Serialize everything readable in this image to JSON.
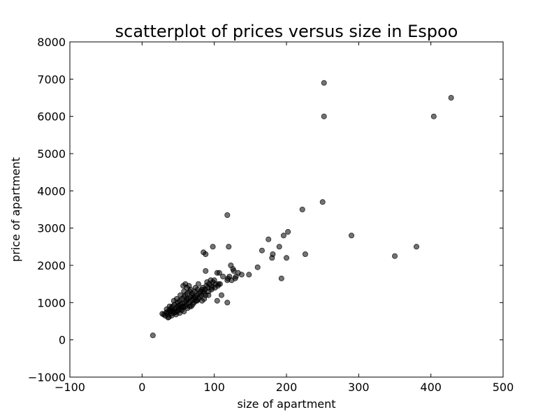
{
  "chart_data": {
    "type": "scatter",
    "title": "scatterplot of prices versus size in Espoo",
    "xlabel": "size of apartment",
    "ylabel": "price of apartment",
    "xlim": [
      -100,
      500
    ],
    "ylim": [
      -1000,
      8000
    ],
    "xticks": [
      -100,
      0,
      100,
      200,
      300,
      400,
      500
    ],
    "yticks": [
      -1000,
      0,
      1000,
      2000,
      3000,
      4000,
      5000,
      6000,
      7000,
      8000
    ],
    "xtick_labels": [
      "−100",
      "0",
      "100",
      "200",
      "300",
      "400",
      "500"
    ],
    "ytick_labels": [
      "−1000",
      "0",
      "1000",
      "2000",
      "3000",
      "4000",
      "5000",
      "6000",
      "7000",
      "8000"
    ],
    "grid": false,
    "marker_color": "#000000",
    "marker_opacity": 0.55,
    "points": [
      [
        15,
        120
      ],
      [
        28,
        700
      ],
      [
        30,
        680
      ],
      [
        32,
        650
      ],
      [
        33,
        720
      ],
      [
        35,
        750
      ],
      [
        36,
        690
      ],
      [
        37,
        610
      ],
      [
        38,
        800
      ],
      [
        39,
        760
      ],
      [
        40,
        850
      ],
      [
        40,
        700
      ],
      [
        41,
        650
      ],
      [
        42,
        900
      ],
      [
        43,
        780
      ],
      [
        44,
        720
      ],
      [
        45,
        950
      ],
      [
        45,
        820
      ],
      [
        46,
        760
      ],
      [
        47,
        680
      ],
      [
        48,
        880
      ],
      [
        49,
        1000
      ],
      [
        50,
        920
      ],
      [
        50,
        780
      ],
      [
        51,
        850
      ],
      [
        52,
        1050
      ],
      [
        52,
        720
      ],
      [
        53,
        950
      ],
      [
        54,
        880
      ],
      [
        55,
        1100
      ],
      [
        55,
        800
      ],
      [
        56,
        980
      ],
      [
        57,
        870
      ],
      [
        58,
        1150
      ],
      [
        58,
        760
      ],
      [
        59,
        1000
      ],
      [
        60,
        1200
      ],
      [
        60,
        900
      ],
      [
        61,
        1050
      ],
      [
        62,
        950
      ],
      [
        63,
        1250
      ],
      [
        63,
        850
      ],
      [
        64,
        1100
      ],
      [
        65,
        1000
      ],
      [
        66,
        1300
      ],
      [
        66,
        900
      ],
      [
        67,
        1150
      ],
      [
        68,
        1050
      ],
      [
        69,
        1200
      ],
      [
        70,
        950
      ],
      [
        70,
        1250
      ],
      [
        71,
        1100
      ],
      [
        72,
        1000
      ],
      [
        73,
        1300
      ],
      [
        74,
        1150
      ],
      [
        75,
        1050
      ],
      [
        76,
        1200
      ],
      [
        77,
        1350
      ],
      [
        78,
        1100
      ],
      [
        79,
        1250
      ],
      [
        80,
        1150
      ],
      [
        81,
        1300
      ],
      [
        82,
        1200
      ],
      [
        83,
        1050
      ],
      [
        84,
        1400
      ],
      [
        85,
        1300
      ],
      [
        86,
        1250
      ],
      [
        87,
        1350
      ],
      [
        88,
        1200
      ],
      [
        89,
        1450
      ],
      [
        90,
        1550
      ],
      [
        91,
        1400
      ],
      [
        92,
        1300
      ],
      [
        93,
        1500
      ],
      [
        95,
        1600
      ],
      [
        96,
        1450
      ],
      [
        97,
        1400
      ],
      [
        98,
        1550
      ],
      [
        100,
        1600
      ],
      [
        102,
        1500
      ],
      [
        104,
        1800
      ],
      [
        105,
        1450
      ],
      [
        107,
        1800
      ],
      [
        110,
        1200
      ],
      [
        112,
        1700
      ],
      [
        118,
        1000
      ],
      [
        119,
        1650
      ],
      [
        121,
        1700
      ],
      [
        124,
        1600
      ],
      [
        126,
        1900
      ],
      [
        129,
        1650
      ],
      [
        133,
        1800
      ],
      [
        138,
        1750
      ],
      [
        148,
        1750
      ],
      [
        160,
        1950
      ],
      [
        166,
        2400
      ],
      [
        175,
        2700
      ],
      [
        180,
        2200
      ],
      [
        181,
        2300
      ],
      [
        190,
        2500
      ],
      [
        193,
        1650
      ],
      [
        196,
        2800
      ],
      [
        200,
        2200
      ],
      [
        202,
        2900
      ],
      [
        222,
        3500
      ],
      [
        226,
        2300
      ],
      [
        250,
        3700
      ],
      [
        252,
        6000
      ],
      [
        252,
        6900
      ],
      [
        290,
        2800
      ],
      [
        350,
        2250
      ],
      [
        380,
        2500
      ],
      [
        404,
        6000
      ],
      [
        428,
        6500
      ],
      [
        57,
        1450
      ],
      [
        60,
        1500
      ],
      [
        62,
        1400
      ],
      [
        65,
        1450
      ],
      [
        85,
        2350
      ],
      [
        88,
        2300
      ],
      [
        88,
        1850
      ],
      [
        98,
        2500
      ],
      [
        118,
        3350
      ],
      [
        120,
        2500
      ],
      [
        123,
        2000
      ],
      [
        127,
        1850
      ],
      [
        108,
        1500
      ],
      [
        104,
        1050
      ],
      [
        118,
        1600
      ],
      [
        130,
        1700
      ],
      [
        44,
        1050
      ],
      [
        48,
        1100
      ],
      [
        53,
        1200
      ],
      [
        58,
        1300
      ],
      [
        67,
        1350
      ],
      [
        74,
        1400
      ],
      [
        78,
        1500
      ],
      [
        34,
        820
      ],
      [
        38,
        900
      ],
      [
        36,
        600
      ],
      [
        41,
        780
      ],
      [
        47,
        740
      ],
      [
        52,
        820
      ],
      [
        57,
        900
      ],
      [
        62,
        1100
      ],
      [
        68,
        900
      ],
      [
        72,
        1150
      ],
      [
        76,
        1050
      ],
      [
        83,
        1350
      ],
      [
        86,
        1100
      ],
      [
        92,
        1200
      ],
      [
        96,
        1350
      ],
      [
        101,
        1400
      ],
      [
        106,
        1500
      ]
    ]
  }
}
